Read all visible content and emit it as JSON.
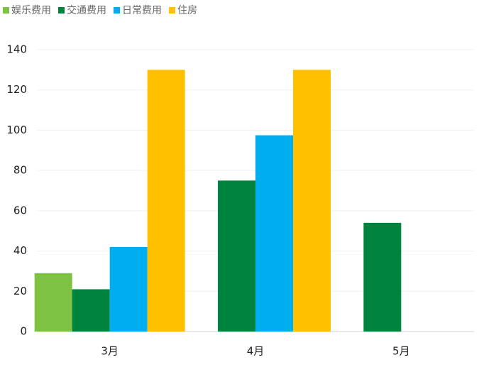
{
  "chart_data": {
    "type": "bar",
    "categories": [
      "3月",
      "4月",
      "5月"
    ],
    "series": [
      {
        "name": "娱乐费用",
        "color": "#7dc242",
        "values": [
          29,
          null,
          null
        ]
      },
      {
        "name": "交通费用",
        "color": "#00843d",
        "values": [
          21,
          75,
          54
        ]
      },
      {
        "name": "日常费用",
        "color": "#00aeef",
        "values": [
          42,
          97.5,
          null
        ]
      },
      {
        "name": "住房",
        "color": "#ffc000",
        "values": [
          130,
          130,
          null
        ]
      }
    ],
    "ylim": [
      0,
      140
    ],
    "yticks": [
      0,
      20,
      40,
      60,
      80,
      100,
      120,
      140
    ],
    "grid": true,
    "legend": "top-left"
  }
}
